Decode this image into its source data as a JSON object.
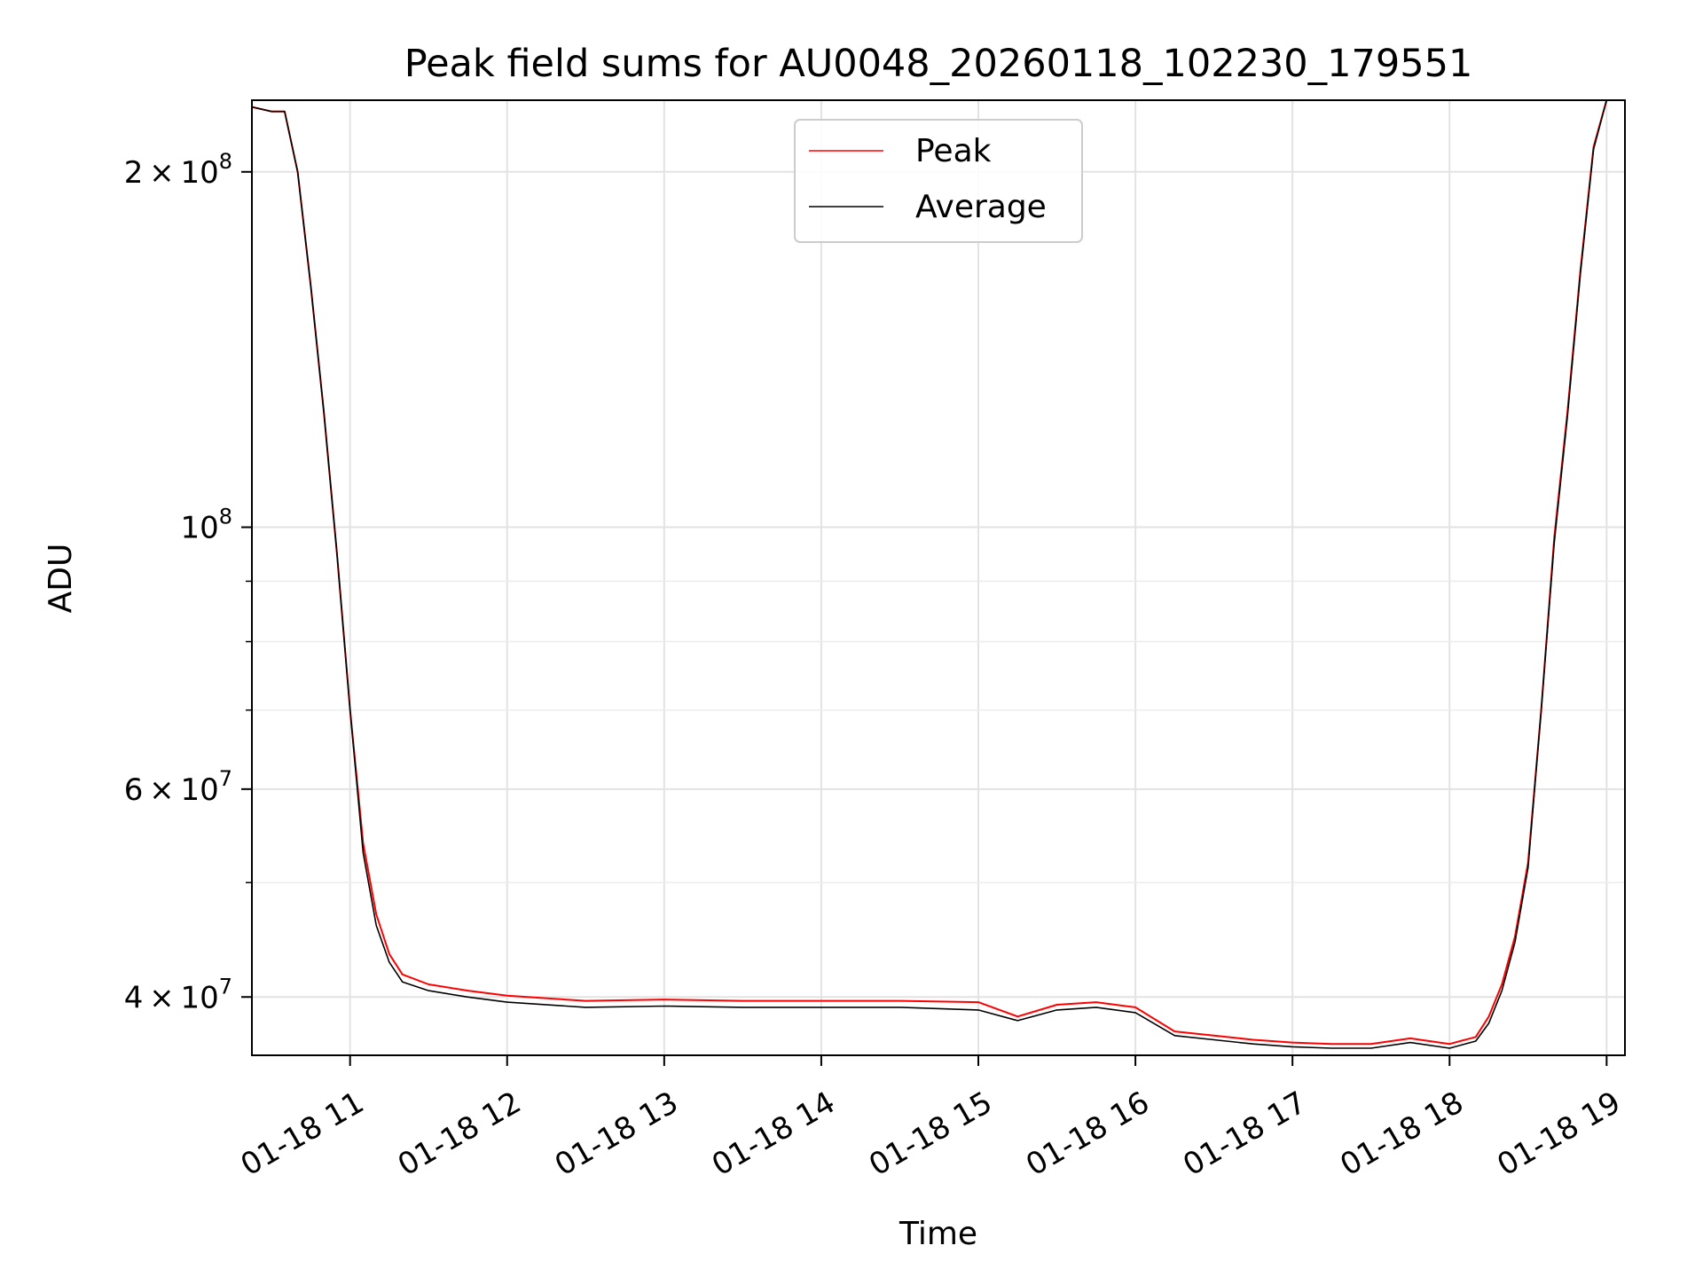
{
  "chart_data": {
    "type": "line",
    "title": "Peak field sums for AU0048_20260118_102230_179551",
    "xlabel": "Time",
    "ylabel": "ADU",
    "x_axis": {
      "kind": "time",
      "range": [
        "2026-01-18T10:22:30",
        "2026-01-18T19:07:00"
      ],
      "ticks": [
        {
          "value": "2026-01-18T11:00",
          "label": "01-18 11"
        },
        {
          "value": "2026-01-18T12:00",
          "label": "01-18 12"
        },
        {
          "value": "2026-01-18T13:00",
          "label": "01-18 13"
        },
        {
          "value": "2026-01-18T14:00",
          "label": "01-18 14"
        },
        {
          "value": "2026-01-18T15:00",
          "label": "01-18 15"
        },
        {
          "value": "2026-01-18T16:00",
          "label": "01-18 16"
        },
        {
          "value": "2026-01-18T17:00",
          "label": "01-18 17"
        },
        {
          "value": "2026-01-18T18:00",
          "label": "01-18 18"
        },
        {
          "value": "2026-01-18T19:00",
          "label": "01-18 19"
        }
      ]
    },
    "y_axis": {
      "scale": "log",
      "range": [
        35700000,
        230000000
      ],
      "major_ticks": [
        {
          "value": 40000000,
          "base": "4",
          "exp": "7"
        },
        {
          "value": 60000000,
          "base": "6",
          "exp": "7"
        },
        {
          "value": 100000000,
          "base": "",
          "exp": "8"
        },
        {
          "value": 200000000,
          "base": "2",
          "exp": "8"
        }
      ],
      "minor_ticks": [
        50000000,
        70000000,
        80000000,
        90000000
      ]
    },
    "grid": true,
    "legend": {
      "position": "top-center"
    },
    "series": [
      {
        "name": "Peak",
        "color": "#ff0000",
        "points": [
          [
            "2026-01-18T10:22:30",
            227000000
          ],
          [
            "2026-01-18T10:30",
            225000000
          ],
          [
            "2026-01-18T10:35",
            225000000
          ],
          [
            "2026-01-18T10:40",
            200000000
          ],
          [
            "2026-01-18T10:45",
            160000000
          ],
          [
            "2026-01-18T10:50",
            125000000
          ],
          [
            "2026-01-18T10:55",
            95000000
          ],
          [
            "2026-01-18T11:00",
            70000000
          ],
          [
            "2026-01-18T11:05",
            54000000
          ],
          [
            "2026-01-18T11:10",
            47000000
          ],
          [
            "2026-01-18T11:15",
            43500000
          ],
          [
            "2026-01-18T11:20",
            41800000
          ],
          [
            "2026-01-18T11:30",
            41000000
          ],
          [
            "2026-01-18T11:45",
            40500000
          ],
          [
            "2026-01-18T12:00",
            40100000
          ],
          [
            "2026-01-18T12:30",
            39700000
          ],
          [
            "2026-01-18T13:00",
            39800000
          ],
          [
            "2026-01-18T13:30",
            39700000
          ],
          [
            "2026-01-18T14:00",
            39700000
          ],
          [
            "2026-01-18T14:30",
            39700000
          ],
          [
            "2026-01-18T15:00",
            39600000
          ],
          [
            "2026-01-18T15:15",
            38500000
          ],
          [
            "2026-01-18T15:30",
            39400000
          ],
          [
            "2026-01-18T15:45",
            39600000
          ],
          [
            "2026-01-18T16:00",
            39200000
          ],
          [
            "2026-01-18T16:15",
            37400000
          ],
          [
            "2026-01-18T16:30",
            37100000
          ],
          [
            "2026-01-18T16:45",
            36800000
          ],
          [
            "2026-01-18T17:00",
            36600000
          ],
          [
            "2026-01-18T17:15",
            36500000
          ],
          [
            "2026-01-18T17:30",
            36500000
          ],
          [
            "2026-01-18T17:45",
            36900000
          ],
          [
            "2026-01-18T18:00",
            36500000
          ],
          [
            "2026-01-18T18:10",
            37000000
          ],
          [
            "2026-01-18T18:15",
            38500000
          ],
          [
            "2026-01-18T18:20",
            41000000
          ],
          [
            "2026-01-18T18:25",
            45000000
          ],
          [
            "2026-01-18T18:30",
            52000000
          ],
          [
            "2026-01-18T18:35",
            70000000
          ],
          [
            "2026-01-18T18:40",
            98000000
          ],
          [
            "2026-01-18T18:45",
            125000000
          ],
          [
            "2026-01-18T18:50",
            165000000
          ],
          [
            "2026-01-18T18:55",
            210000000
          ],
          [
            "2026-01-18T19:00",
            230000000
          ]
        ]
      },
      {
        "name": "Average",
        "color": "#000000",
        "points": [
          [
            "2026-01-18T10:22:30",
            227000000
          ],
          [
            "2026-01-18T10:30",
            225000000
          ],
          [
            "2026-01-18T10:35",
            225000000
          ],
          [
            "2026-01-18T10:40",
            200000000
          ],
          [
            "2026-01-18T10:45",
            160000000
          ],
          [
            "2026-01-18T10:50",
            125000000
          ],
          [
            "2026-01-18T10:55",
            95000000
          ],
          [
            "2026-01-18T11:00",
            70000000
          ],
          [
            "2026-01-18T11:05",
            53000000
          ],
          [
            "2026-01-18T11:10",
            46000000
          ],
          [
            "2026-01-18T11:15",
            42800000
          ],
          [
            "2026-01-18T11:20",
            41200000
          ],
          [
            "2026-01-18T11:30",
            40500000
          ],
          [
            "2026-01-18T11:45",
            40000000
          ],
          [
            "2026-01-18T12:00",
            39600000
          ],
          [
            "2026-01-18T12:30",
            39200000
          ],
          [
            "2026-01-18T13:00",
            39300000
          ],
          [
            "2026-01-18T13:30",
            39200000
          ],
          [
            "2026-01-18T14:00",
            39200000
          ],
          [
            "2026-01-18T14:30",
            39200000
          ],
          [
            "2026-01-18T15:00",
            39000000
          ],
          [
            "2026-01-18T15:15",
            38200000
          ],
          [
            "2026-01-18T15:30",
            39000000
          ],
          [
            "2026-01-18T15:45",
            39200000
          ],
          [
            "2026-01-18T16:00",
            38800000
          ],
          [
            "2026-01-18T16:15",
            37100000
          ],
          [
            "2026-01-18T16:30",
            36800000
          ],
          [
            "2026-01-18T16:45",
            36500000
          ],
          [
            "2026-01-18T17:00",
            36300000
          ],
          [
            "2026-01-18T17:15",
            36200000
          ],
          [
            "2026-01-18T17:30",
            36200000
          ],
          [
            "2026-01-18T17:45",
            36600000
          ],
          [
            "2026-01-18T18:00",
            36200000
          ],
          [
            "2026-01-18T18:10",
            36700000
          ],
          [
            "2026-01-18T18:15",
            38000000
          ],
          [
            "2026-01-18T18:20",
            40500000
          ],
          [
            "2026-01-18T18:25",
            44500000
          ],
          [
            "2026-01-18T18:30",
            51500000
          ],
          [
            "2026-01-18T18:35",
            70000000
          ],
          [
            "2026-01-18T18:40",
            97000000
          ],
          [
            "2026-01-18T18:45",
            124000000
          ],
          [
            "2026-01-18T18:50",
            164000000
          ],
          [
            "2026-01-18T18:55",
            209000000
          ],
          [
            "2026-01-18T19:00",
            230000000
          ]
        ]
      }
    ]
  }
}
